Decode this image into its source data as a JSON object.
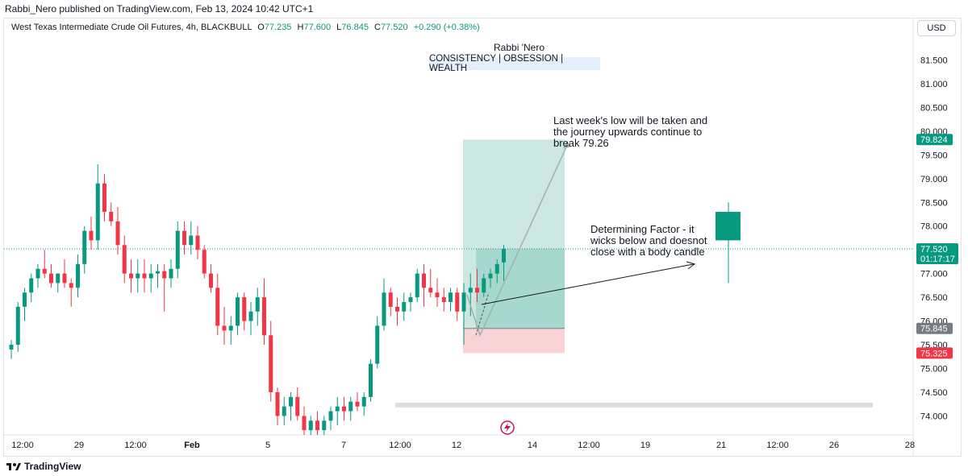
{
  "header": {
    "published_by": "Rabbi_Nero published on TradingView.com, Feb 13, 2024 10:42 UTC+1",
    "symbol_line": "West Texas Intermediate Crude Oil Futures, 4h, BLACKBULL",
    "open_label": "O",
    "open": "77.235",
    "high_label": "H",
    "high": "77.600",
    "low_label": "L",
    "low": "76.845",
    "close_label": "C",
    "close": "77.520",
    "change": "+0.290 (+0.38%)",
    "currency_button": "USD"
  },
  "watermark": {
    "author": "Rabbi 'Nero",
    "motto": "CONSISTENCY | OBSESSION | WEALTH"
  },
  "annotations": {
    "note1": "Last week's low will be taken and\nthe journey upwards continue to\nbreak 79.26",
    "note2": "Determining Factor - it\nwicks below and doesnot\nclose with a body candle"
  },
  "price_labels": {
    "tp": "79.824",
    "last": "77.520",
    "countdown": "01:17:17",
    "entry": "75.845",
    "sl": "75.325"
  },
  "footer": {
    "brand": "TradingView"
  },
  "colors": {
    "up": "#089981",
    "down": "#f23645",
    "tp_zone": "#cde8e2",
    "tp_zone_inner": "#a6d8cd",
    "sl_zone": "#f9d4d6",
    "grid": "#f0f3fa"
  },
  "chart_data": {
    "type": "candlestick",
    "interval": "4h",
    "y_axis_ticks": [
      "74.000",
      "74.500",
      "75.000",
      "75.500",
      "76.000",
      "76.500",
      "77.000",
      "77.500",
      "78.000",
      "78.500",
      "79.000",
      "79.500",
      "80.000",
      "80.500",
      "81.000",
      "81.500"
    ],
    "x_axis_ticks": [
      "12:00",
      "29",
      "12:00",
      "Feb",
      "5",
      "7",
      "12:00",
      "12",
      "14",
      "12:00",
      "19",
      "21",
      "12:00",
      "26",
      "28"
    ],
    "ylim": [
      73.6,
      82.0
    ],
    "long_position": {
      "entry": 75.845,
      "take_profit": 79.824,
      "stop_loss": 75.325
    },
    "support_zone": [
      74.18,
      74.28
    ],
    "candles": [
      {
        "o": 75.4,
        "h": 75.6,
        "l": 75.2,
        "c": 75.5
      },
      {
        "o": 75.5,
        "h": 76.4,
        "l": 75.35,
        "c": 76.3
      },
      {
        "o": 76.3,
        "h": 76.7,
        "l": 76.0,
        "c": 76.6
      },
      {
        "o": 76.6,
        "h": 77.0,
        "l": 76.4,
        "c": 76.9
      },
      {
        "o": 76.9,
        "h": 77.2,
        "l": 76.7,
        "c": 77.1
      },
      {
        "o": 77.1,
        "h": 77.5,
        "l": 76.9,
        "c": 77.0
      },
      {
        "o": 77.0,
        "h": 77.2,
        "l": 76.7,
        "c": 76.8
      },
      {
        "o": 76.8,
        "h": 77.0,
        "l": 76.6,
        "c": 77.0
      },
      {
        "o": 77.0,
        "h": 77.3,
        "l": 76.7,
        "c": 76.8
      },
      {
        "o": 76.8,
        "h": 76.9,
        "l": 76.3,
        "c": 76.7
      },
      {
        "o": 76.7,
        "h": 77.4,
        "l": 76.5,
        "c": 77.2
      },
      {
        "o": 77.2,
        "h": 78.0,
        "l": 77.0,
        "c": 77.9
      },
      {
        "o": 77.9,
        "h": 78.2,
        "l": 77.5,
        "c": 77.7
      },
      {
        "o": 77.7,
        "h": 79.3,
        "l": 77.5,
        "c": 78.9
      },
      {
        "o": 78.9,
        "h": 79.1,
        "l": 78.1,
        "c": 78.3
      },
      {
        "o": 78.3,
        "h": 78.5,
        "l": 78.0,
        "c": 78.1
      },
      {
        "o": 78.1,
        "h": 78.4,
        "l": 77.4,
        "c": 77.6
      },
      {
        "o": 77.6,
        "h": 77.8,
        "l": 76.8,
        "c": 77.0
      },
      {
        "o": 77.0,
        "h": 77.3,
        "l": 76.6,
        "c": 76.9
      },
      {
        "o": 76.9,
        "h": 77.3,
        "l": 76.6,
        "c": 77.0
      },
      {
        "o": 77.0,
        "h": 77.3,
        "l": 76.6,
        "c": 76.9
      },
      {
        "o": 76.9,
        "h": 77.2,
        "l": 76.6,
        "c": 77.0
      },
      {
        "o": 77.0,
        "h": 77.2,
        "l": 76.7,
        "c": 77.05
      },
      {
        "o": 77.05,
        "h": 77.2,
        "l": 76.2,
        "c": 76.9
      },
      {
        "o": 76.9,
        "h": 77.3,
        "l": 76.7,
        "c": 77.1
      },
      {
        "o": 77.1,
        "h": 78.1,
        "l": 76.9,
        "c": 77.9
      },
      {
        "o": 77.9,
        "h": 78.1,
        "l": 77.4,
        "c": 77.6
      },
      {
        "o": 77.6,
        "h": 78.1,
        "l": 77.4,
        "c": 77.8
      },
      {
        "o": 77.8,
        "h": 78.0,
        "l": 77.3,
        "c": 77.5
      },
      {
        "o": 77.5,
        "h": 77.6,
        "l": 76.9,
        "c": 77.0
      },
      {
        "o": 77.0,
        "h": 77.2,
        "l": 76.6,
        "c": 76.7
      },
      {
        "o": 76.7,
        "h": 77.0,
        "l": 75.7,
        "c": 75.9
      },
      {
        "o": 75.9,
        "h": 76.3,
        "l": 75.5,
        "c": 75.8
      },
      {
        "o": 75.8,
        "h": 76.1,
        "l": 75.5,
        "c": 75.9
      },
      {
        "o": 75.9,
        "h": 76.6,
        "l": 75.7,
        "c": 76.5
      },
      {
        "o": 76.5,
        "h": 76.6,
        "l": 75.8,
        "c": 76.0
      },
      {
        "o": 76.0,
        "h": 76.4,
        "l": 75.7,
        "c": 76.2
      },
      {
        "o": 76.2,
        "h": 76.7,
        "l": 75.9,
        "c": 76.5
      },
      {
        "o": 76.5,
        "h": 76.9,
        "l": 75.5,
        "c": 75.7
      },
      {
        "o": 75.7,
        "h": 76.0,
        "l": 74.3,
        "c": 74.5
      },
      {
        "o": 74.5,
        "h": 74.6,
        "l": 73.8,
        "c": 74.0
      },
      {
        "o": 74.0,
        "h": 74.4,
        "l": 73.8,
        "c": 74.2
      },
      {
        "o": 74.2,
        "h": 74.5,
        "l": 73.9,
        "c": 74.4
      },
      {
        "o": 74.4,
        "h": 74.6,
        "l": 73.9,
        "c": 74.0
      },
      {
        "o": 74.0,
        "h": 74.2,
        "l": 73.6,
        "c": 73.7
      },
      {
        "o": 73.7,
        "h": 74.0,
        "l": 73.6,
        "c": 73.9
      },
      {
        "o": 73.9,
        "h": 74.1,
        "l": 73.6,
        "c": 73.7
      },
      {
        "o": 73.7,
        "h": 74.0,
        "l": 73.6,
        "c": 73.9
      },
      {
        "o": 73.9,
        "h": 74.2,
        "l": 73.7,
        "c": 74.1
      },
      {
        "o": 74.1,
        "h": 74.4,
        "l": 73.8,
        "c": 74.2
      },
      {
        "o": 74.2,
        "h": 74.4,
        "l": 73.9,
        "c": 74.1
      },
      {
        "o": 74.1,
        "h": 74.4,
        "l": 73.9,
        "c": 74.3
      },
      {
        "o": 74.3,
        "h": 74.5,
        "l": 74.1,
        "c": 74.2
      },
      {
        "o": 74.2,
        "h": 74.5,
        "l": 74.0,
        "c": 74.4
      },
      {
        "o": 74.4,
        "h": 75.2,
        "l": 74.3,
        "c": 75.1
      },
      {
        "o": 75.1,
        "h": 76.1,
        "l": 75.0,
        "c": 75.9
      },
      {
        "o": 75.9,
        "h": 76.9,
        "l": 75.8,
        "c": 76.6
      },
      {
        "o": 76.6,
        "h": 76.7,
        "l": 76.1,
        "c": 76.3
      },
      {
        "o": 76.3,
        "h": 76.5,
        "l": 75.9,
        "c": 76.2
      },
      {
        "o": 76.2,
        "h": 76.6,
        "l": 76.0,
        "c": 76.4
      },
      {
        "o": 76.4,
        "h": 76.6,
        "l": 76.2,
        "c": 76.5
      },
      {
        "o": 76.5,
        "h": 77.1,
        "l": 76.4,
        "c": 77.0
      },
      {
        "o": 77.0,
        "h": 77.2,
        "l": 76.3,
        "c": 76.7
      },
      {
        "o": 76.7,
        "h": 77.1,
        "l": 76.5,
        "c": 76.6
      },
      {
        "o": 76.6,
        "h": 76.9,
        "l": 76.3,
        "c": 76.5
      },
      {
        "o": 76.5,
        "h": 76.7,
        "l": 76.2,
        "c": 76.4
      },
      {
        "o": 76.4,
        "h": 76.7,
        "l": 76.2,
        "c": 76.6
      },
      {
        "o": 76.6,
        "h": 76.7,
        "l": 76.0,
        "c": 76.2
      },
      {
        "o": 76.2,
        "h": 76.8,
        "l": 75.5,
        "c": 76.6
      },
      {
        "o": 76.6,
        "h": 77.0,
        "l": 76.1,
        "c": 76.7
      },
      {
        "o": 76.7,
        "h": 77.1,
        "l": 76.4,
        "c": 76.6
      },
      {
        "o": 76.6,
        "h": 77.0,
        "l": 76.5,
        "c": 76.9
      },
      {
        "o": 76.9,
        "h": 77.1,
        "l": 76.7,
        "c": 77.0
      },
      {
        "o": 77.0,
        "h": 77.3,
        "l": 76.8,
        "c": 77.2
      },
      {
        "o": 77.235,
        "h": 77.6,
        "l": 76.845,
        "c": 77.52
      }
    ],
    "projection_candle": {
      "o": 78.3,
      "h": 78.5,
      "l": 76.8,
      "c": 77.7
    }
  }
}
